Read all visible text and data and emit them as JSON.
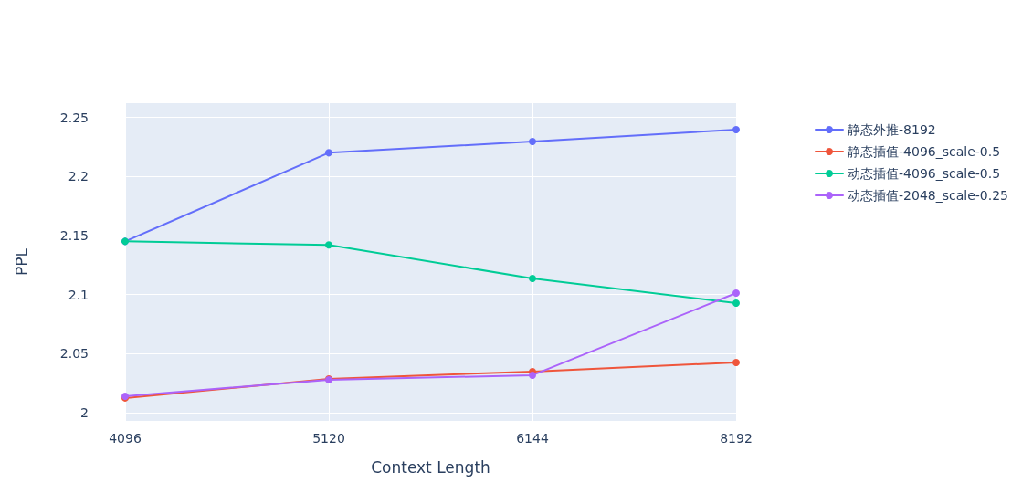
{
  "chart_data": {
    "type": "line",
    "xlabel": "Context Length",
    "ylabel": "PPL",
    "categories": [
      "4096",
      "5120",
      "6144",
      "8192"
    ],
    "ylim": [
      1.993,
      2.262
    ],
    "yticks": [
      2,
      2.05,
      2.1,
      2.15,
      2.2,
      2.25
    ],
    "grid": true,
    "legend": "top right",
    "marker": "circle",
    "line_style": "solid",
    "series": [
      {
        "name": "静态外推-8192",
        "color": "#636efa",
        "values": [
          2.145,
          2.22,
          2.2295,
          2.2396
        ]
      },
      {
        "name": "静态插值-4096_scale-0.5",
        "color": "#ef553b",
        "values": [
          2.0124,
          2.0286,
          2.0348,
          2.0425
        ]
      },
      {
        "name": "动态插值-4096_scale-0.5",
        "color": "#00cc96",
        "values": [
          2.145,
          2.142,
          2.1136,
          2.0927
        ]
      },
      {
        "name": "动态插值-2048_scale-0.25",
        "color": "#ab63fa",
        "values": [
          2.0139,
          2.0278,
          2.0317,
          2.1012
        ]
      }
    ]
  }
}
